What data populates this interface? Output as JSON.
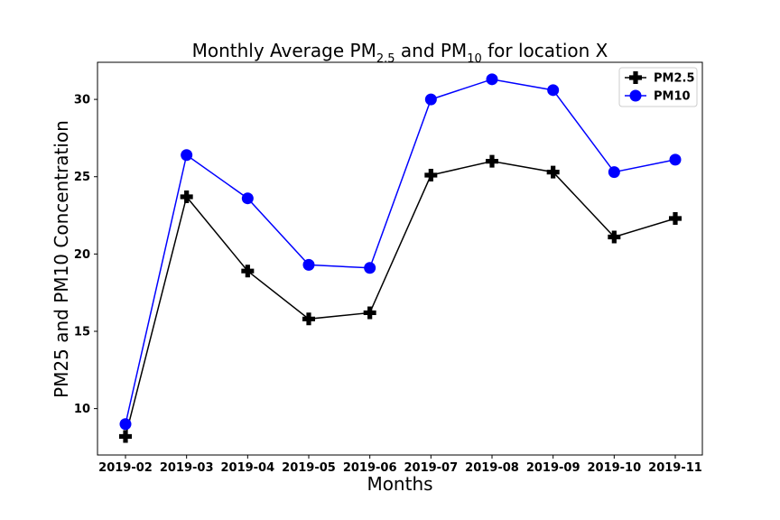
{
  "chart_data": {
    "type": "line",
    "title_main": "Monthly Average PM",
    "title_sub1": "2.5",
    "title_mid": "  and PM",
    "title_sub2": "10",
    "title_end": " for location X",
    "xlabel": "Months",
    "ylabel": "PM25 and PM10 Concentration",
    "categories": [
      "2019-02",
      "2019-03",
      "2019-04",
      "2019-05",
      "2019-06",
      "2019-07",
      "2019-08",
      "2019-09",
      "2019-10",
      "2019-11"
    ],
    "yticks": [
      10,
      15,
      20,
      25,
      30
    ],
    "ylim": [
      7.0,
      32.4
    ],
    "grid": false,
    "legend_position": "top-right",
    "series": [
      {
        "name": "PM2.5",
        "color": "#000000",
        "marker": "plus-filled",
        "values": [
          8.2,
          23.7,
          18.9,
          15.8,
          16.2,
          25.1,
          26.0,
          25.3,
          21.1,
          22.3
        ]
      },
      {
        "name": "PM10",
        "color": "#0000ff",
        "marker": "circle",
        "values": [
          9.0,
          26.4,
          23.6,
          19.3,
          19.1,
          30.0,
          31.3,
          30.6,
          25.3,
          26.1
        ]
      }
    ]
  }
}
